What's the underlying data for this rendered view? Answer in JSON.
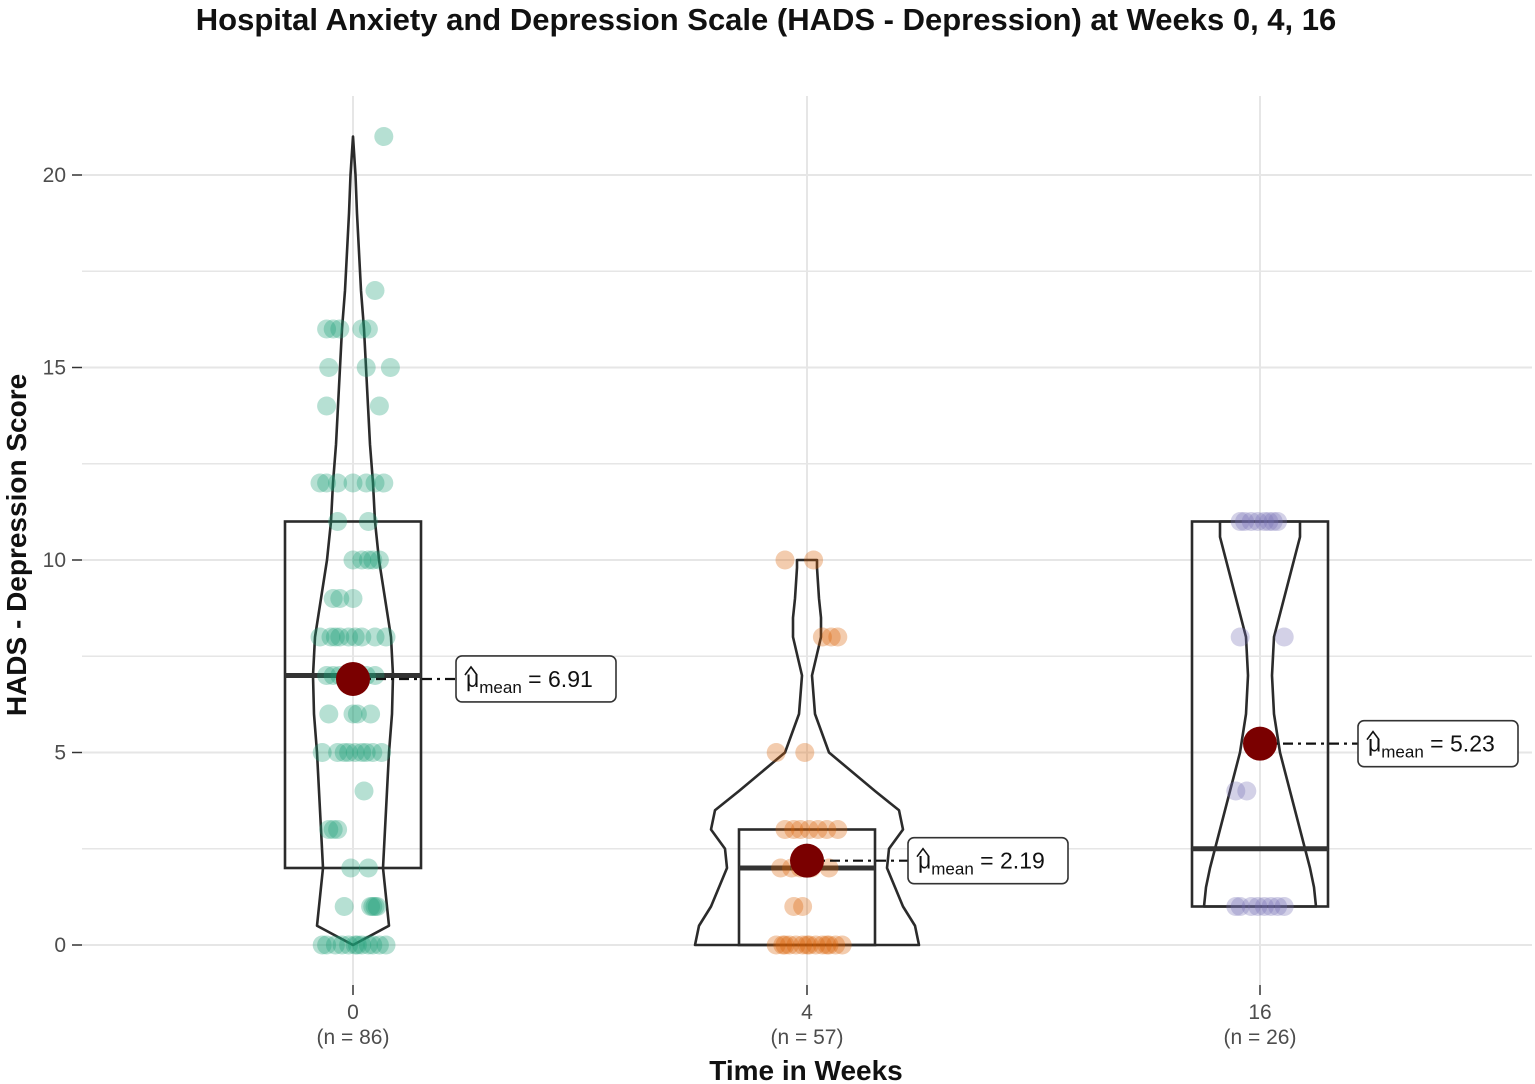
{
  "chart_data": {
    "type": "violin-box-scatter",
    "title": "Hospital Anxiety and Depression Scale (HADS - Depression) at Weeks 0, 4, 16",
    "xlabel": "Time in Weeks",
    "ylabel": "HADS - Depression Score",
    "ylim": [
      -0.5,
      22
    ],
    "yticks": [
      0,
      5,
      10,
      15,
      20
    ],
    "grid": true,
    "mean_symbol": "μ",
    "mean_subscript": "mean",
    "groups": [
      {
        "category": "0",
        "n_label": "(n = 86)",
        "color": "#1b9e77",
        "box": {
          "q1": 2,
          "median": 7,
          "q3": 11
        },
        "violin_max": 21,
        "mean": 6.91,
        "mean_label": "6.91",
        "points": [
          [
            -0.6,
            0
          ],
          [
            -0.4,
            0
          ],
          [
            -0.25,
            0
          ],
          [
            -0.1,
            0
          ],
          [
            0.1,
            0
          ],
          [
            0.2,
            0
          ],
          [
            0.35,
            0
          ],
          [
            0.6,
            0
          ],
          [
            0.75,
            0
          ],
          [
            -0.7,
            0
          ],
          [
            0.05,
            0
          ],
          [
            0.45,
            0
          ],
          [
            -0.2,
            1
          ],
          [
            0.4,
            1
          ],
          [
            0.45,
            1
          ],
          [
            0.5,
            1
          ],
          [
            0.55,
            1
          ],
          [
            -0.05,
            2
          ],
          [
            0.35,
            2
          ],
          [
            -0.55,
            3
          ],
          [
            -0.45,
            3
          ],
          [
            -0.35,
            3
          ],
          [
            0.25,
            4
          ],
          [
            -0.7,
            5
          ],
          [
            -0.35,
            5
          ],
          [
            -0.2,
            5
          ],
          [
            -0.1,
            5
          ],
          [
            0.05,
            5
          ],
          [
            0.2,
            5
          ],
          [
            0.3,
            5
          ],
          [
            0.45,
            5
          ],
          [
            0.65,
            5
          ],
          [
            -0.55,
            6
          ],
          [
            0.0,
            6
          ],
          [
            0.1,
            6
          ],
          [
            0.4,
            6
          ],
          [
            -0.6,
            7
          ],
          [
            -0.45,
            7
          ],
          [
            -0.3,
            7
          ],
          [
            -0.15,
            7
          ],
          [
            0.1,
            7
          ],
          [
            0.3,
            7
          ],
          [
            0.5,
            7
          ],
          [
            -0.75,
            8
          ],
          [
            -0.5,
            8
          ],
          [
            -0.4,
            8
          ],
          [
            -0.3,
            8
          ],
          [
            -0.1,
            8
          ],
          [
            0.05,
            8
          ],
          [
            0.2,
            8
          ],
          [
            0.5,
            8
          ],
          [
            0.75,
            8
          ],
          [
            -0.45,
            9
          ],
          [
            -0.3,
            9
          ],
          [
            0.0,
            9
          ],
          [
            0.0,
            10
          ],
          [
            0.2,
            10
          ],
          [
            0.35,
            10
          ],
          [
            0.45,
            10
          ],
          [
            0.6,
            10
          ],
          [
            -0.35,
            11
          ],
          [
            0.35,
            11
          ],
          [
            -0.75,
            12
          ],
          [
            -0.6,
            12
          ],
          [
            -0.35,
            12
          ],
          [
            0.0,
            12
          ],
          [
            0.3,
            12
          ],
          [
            0.5,
            12
          ],
          [
            0.7,
            12
          ],
          [
            -0.6,
            14
          ],
          [
            0.6,
            14
          ],
          [
            -0.55,
            15
          ],
          [
            0.3,
            15
          ],
          [
            0.85,
            15
          ],
          [
            -0.6,
            16
          ],
          [
            -0.45,
            16
          ],
          [
            -0.3,
            16
          ],
          [
            0.2,
            16
          ],
          [
            0.35,
            16
          ],
          [
            0.5,
            17
          ],
          [
            0.7,
            21
          ]
        ]
      },
      {
        "category": "4",
        "n_label": "(n = 57)",
        "color": "#d95f02",
        "box": {
          "q1": 0,
          "median": 2,
          "q3": 3
        },
        "violin_max": 10,
        "mean": 2.19,
        "mean_label": "2.19",
        "points": [
          [
            -0.7,
            0
          ],
          [
            -0.55,
            0
          ],
          [
            -0.4,
            0
          ],
          [
            -0.25,
            0
          ],
          [
            -0.1,
            0
          ],
          [
            0.05,
            0
          ],
          [
            0.2,
            0
          ],
          [
            0.35,
            0
          ],
          [
            0.5,
            0
          ],
          [
            0.65,
            0
          ],
          [
            0.8,
            0
          ],
          [
            -0.5,
            0
          ],
          [
            0.0,
            0
          ],
          [
            0.45,
            0
          ],
          [
            -0.3,
            1
          ],
          [
            -0.1,
            1
          ],
          [
            -0.6,
            2
          ],
          [
            -0.35,
            2
          ],
          [
            -0.15,
            2
          ],
          [
            0.1,
            2
          ],
          [
            0.5,
            2
          ],
          [
            -0.5,
            3
          ],
          [
            -0.3,
            3
          ],
          [
            -0.15,
            3
          ],
          [
            0.05,
            3
          ],
          [
            0.25,
            3
          ],
          [
            0.45,
            3
          ],
          [
            0.7,
            3
          ],
          [
            -0.7,
            5
          ],
          [
            -0.05,
            5
          ],
          [
            0.35,
            8
          ],
          [
            0.55,
            8
          ],
          [
            0.7,
            8
          ],
          [
            -0.5,
            10
          ],
          [
            0.15,
            10
          ]
        ]
      },
      {
        "category": "16",
        "n_label": "(n = 26)",
        "color": "#7570b3",
        "box": {
          "q1": 1,
          "median": 2.5,
          "q3": 11
        },
        "violin_max": 11,
        "mean": 5.23,
        "mean_label": "5.23",
        "points": [
          [
            -0.55,
            1
          ],
          [
            -0.45,
            1
          ],
          [
            -0.2,
            1
          ],
          [
            -0.05,
            1
          ],
          [
            0.1,
            1
          ],
          [
            0.25,
            1
          ],
          [
            0.4,
            1
          ],
          [
            0.55,
            1
          ],
          [
            -0.55,
            4
          ],
          [
            -0.3,
            4
          ],
          [
            -0.45,
            8
          ],
          [
            0.55,
            8
          ],
          [
            -0.45,
            11
          ],
          [
            -0.35,
            11
          ],
          [
            -0.2,
            11
          ],
          [
            -0.05,
            11
          ],
          [
            0.1,
            11
          ],
          [
            0.2,
            11
          ],
          [
            0.3,
            11
          ],
          [
            0.4,
            11
          ]
        ]
      }
    ]
  }
}
